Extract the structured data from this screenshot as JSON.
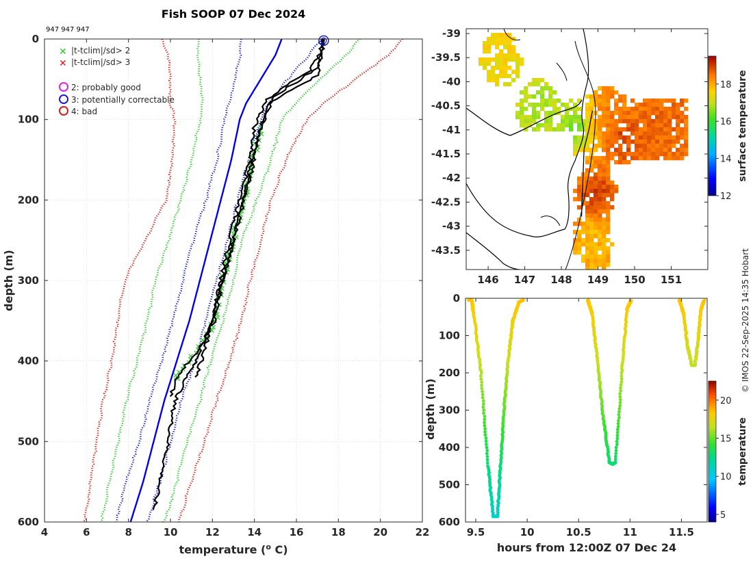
{
  "title": "Fish SOOP 07 Dec 2024",
  "ids_label": "947 947 947",
  "credit": "© IMOS 22-Sep-2025 14:35 Hobart",
  "colors": {
    "clim_red": "#e01818",
    "clim_green": "#22cc22",
    "clim_blue_dot": "#1a1ad0",
    "clim_blue_solid": "#0000ee",
    "profile": "#000000",
    "coast": "#000000"
  },
  "legend": {
    "items": [
      {
        "symbol": "x",
        "color": "#22cc22",
        "label": "|t-tclim|/sd> 2"
      },
      {
        "symbol": "x",
        "color": "#e01818",
        "label": "|t-tclim|/sd> 3"
      },
      {
        "symbol": "o",
        "color": "#dd22dd",
        "label": "2: probably good"
      },
      {
        "symbol": "o",
        "color": "#1a1ad0",
        "label": "3: potentially correctable"
      },
      {
        "symbol": "o",
        "color": "#e01818",
        "label": "4: bad"
      }
    ]
  },
  "chart_data": [
    {
      "type": "line",
      "name": "profile",
      "title": "Fish SOOP 07 Dec 2024",
      "xlabel": "temperature (",
      "xlabel_sup": "o",
      "xlabel_end": " C)",
      "ylabel": "depth (m)",
      "xlim": [
        4,
        22
      ],
      "ylim": [
        600,
        0
      ],
      "xticks": [
        4,
        6,
        8,
        10,
        12,
        14,
        16,
        18,
        20,
        22
      ],
      "yticks": [
        0,
        100,
        200,
        300,
        400,
        500,
        600
      ],
      "grid": true,
      "climatology": [
        {
          "name": "clim-minus-3sd",
          "style": "dotted",
          "color": "#e01818",
          "depth": [
            0,
            20,
            50,
            80,
            100,
            150,
            200,
            250,
            300,
            350,
            400,
            450,
            500,
            550,
            600
          ],
          "temp": [
            9.6,
            9.9,
            10.0,
            10.0,
            10.2,
            10.1,
            9.8,
            8.8,
            7.8,
            7.5,
            7.2,
            6.8,
            6.5,
            6.2,
            5.9
          ]
        },
        {
          "name": "clim-minus-2sd",
          "style": "dotted",
          "color": "#22cc22",
          "depth": [
            0,
            20,
            50,
            80,
            100,
            150,
            200,
            250,
            300,
            350,
            400,
            450,
            500,
            550,
            600
          ],
          "temp": [
            11.4,
            11.3,
            11.4,
            11.5,
            11.4,
            11.0,
            10.5,
            9.9,
            9.3,
            8.9,
            8.4,
            7.9,
            7.5,
            7.1,
            6.7
          ]
        },
        {
          "name": "clim-minus-1sd",
          "style": "dotted",
          "color": "#1a1ad0",
          "depth": [
            0,
            20,
            50,
            80,
            100,
            150,
            200,
            250,
            300,
            350,
            400,
            450,
            500,
            550,
            600
          ],
          "temp": [
            13.4,
            13.3,
            13.1,
            12.8,
            12.6,
            12.2,
            11.7,
            11.1,
            10.6,
            10.1,
            9.6,
            9.0,
            8.5,
            7.9,
            7.4
          ]
        },
        {
          "name": "clim-mean",
          "style": "solid",
          "color": "#0000ee",
          "depth": [
            0,
            20,
            50,
            80,
            100,
            150,
            200,
            250,
            300,
            350,
            400,
            450,
            500,
            550,
            600
          ],
          "temp": [
            15.3,
            15.0,
            14.3,
            13.6,
            13.3,
            12.9,
            12.4,
            11.9,
            11.4,
            10.9,
            10.3,
            9.7,
            9.2,
            8.7,
            8.1
          ]
        },
        {
          "name": "clim-plus-1sd",
          "style": "dotted",
          "color": "#1a1ad0",
          "depth": [
            0,
            20,
            50,
            80,
            100,
            150,
            200,
            250,
            300,
            350,
            400,
            450,
            500,
            550,
            600
          ],
          "temp": [
            17.2,
            16.6,
            15.6,
            14.7,
            14.3,
            13.7,
            13.2,
            12.7,
            12.2,
            11.7,
            11.2,
            10.5,
            10.0,
            9.5,
            8.9
          ]
        },
        {
          "name": "clim-plus-2sd",
          "style": "dotted",
          "color": "#22cc22",
          "depth": [
            0,
            20,
            50,
            80,
            100,
            150,
            200,
            250,
            300,
            350,
            400,
            450,
            500,
            550,
            600
          ],
          "temp": [
            19.0,
            18.4,
            17.1,
            16.0,
            15.3,
            14.8,
            14.1,
            13.4,
            13.0,
            12.5,
            11.9,
            11.4,
            10.8,
            10.3,
            9.7
          ]
        },
        {
          "name": "clim-plus-3sd",
          "style": "dotted",
          "color": "#e01818",
          "depth": [
            0,
            20,
            50,
            80,
            100,
            150,
            200,
            250,
            300,
            350,
            400,
            450,
            500,
            550,
            600
          ],
          "temp": [
            21.0,
            20.4,
            18.8,
            17.3,
            16.5,
            15.5,
            14.8,
            14.3,
            13.8,
            13.4,
            12.8,
            12.2,
            11.6,
            11.0,
            10.4
          ]
        }
      ],
      "profiles": [
        {
          "name": "profile-1",
          "depth": [
            0,
            20,
            35,
            50,
            70,
            100,
            130,
            160,
            200,
            250,
            300,
            350,
            380,
            400,
            420,
            445
          ],
          "temp": [
            17.3,
            17.2,
            17.0,
            16.2,
            15.0,
            14.4,
            14.1,
            13.8,
            13.5,
            13.0,
            12.5,
            12.1,
            11.5,
            10.9,
            10.3,
            10.0
          ]
        },
        {
          "name": "profile-2",
          "depth": [
            0,
            20,
            40,
            55,
            75,
            110,
            150,
            200,
            250,
            300,
            350,
            400,
            430,
            450,
            500,
            550,
            585
          ],
          "temp": [
            17.3,
            17.1,
            16.6,
            15.6,
            14.6,
            14.0,
            13.8,
            13.3,
            12.8,
            12.4,
            12.0,
            11.2,
            10.6,
            10.2,
            9.9,
            9.5,
            9.2
          ]
        },
        {
          "name": "profile-3",
          "depth": [
            0,
            20,
            45,
            60,
            80,
            120,
            160,
            210,
            260,
            310,
            350,
            390,
            420
          ],
          "temp": [
            17.3,
            17.2,
            17.0,
            16.0,
            14.7,
            14.2,
            13.9,
            13.4,
            12.9,
            12.4,
            12.0,
            11.6,
            11.2
          ]
        }
      ],
      "flagged_2sd_points": {
        "depth_range": [
          110,
          425
        ],
        "marker": "x",
        "color": "#22cc22"
      },
      "surface_flag_marker": {
        "depth": 2,
        "temp": 17.3,
        "label": "3: potentially correctable"
      }
    },
    {
      "type": "heatmap",
      "name": "sst-map",
      "colorbar_label": "surface temperature",
      "clim": [
        12,
        19.5
      ],
      "colorbar_ticks": [
        12,
        14,
        16,
        18
      ],
      "xlim": [
        145.4,
        152.0
      ],
      "ylim": [
        -43.9,
        -38.9
      ],
      "xticks": [
        146,
        147,
        148,
        149,
        150,
        151
      ],
      "yticks": [
        -39,
        -39.5,
        -40,
        -40.5,
        -41,
        -41.5,
        -42,
        -42.5,
        -43,
        -43.5
      ],
      "ytick_labels": [
        "-39",
        "-39.5",
        "-40",
        "-40.5",
        "-41",
        "-41.5",
        "-42",
        "-42.5",
        "-43",
        "-43.5"
      ],
      "track": {
        "lon": [
          148.85,
          148.75,
          148.62,
          148.55
        ],
        "lat": [
          -40.6,
          -41.0,
          -41.4,
          -42.8
        ]
      },
      "warm_blobs": [
        {
          "lon": 149.6,
          "lat": -41.1,
          "temp": 18.9
        },
        {
          "lon": 150.7,
          "lat": -40.8,
          "temp": 18.6
        },
        {
          "lon": 149.2,
          "lat": -40.6,
          "temp": 18.4
        },
        {
          "lon": 148.8,
          "lat": -43.2,
          "temp": 17.8
        },
        {
          "lon": 148.9,
          "lat": -42.3,
          "temp": 19.0
        },
        {
          "lon": 146.3,
          "lat": -39.5,
          "temp": 17.5
        },
        {
          "lon": 147.3,
          "lat": -40.5,
          "temp": 16.7
        },
        {
          "lon": 148.3,
          "lat": -40.9,
          "temp": 16.4
        }
      ]
    },
    {
      "type": "scatter",
      "name": "depth-time",
      "xlabel": "hours from 12:00Z 07 Dec 24",
      "ylabel": "depth (m)",
      "colorbar_label": "temperature",
      "clim": [
        4,
        22.5
      ],
      "colorbar_ticks": [
        5,
        10,
        15,
        20
      ],
      "xlim": [
        9.4,
        11.75
      ],
      "ylim": [
        600,
        0
      ],
      "xticks": [
        9.5,
        10,
        10.5,
        11,
        11.5
      ],
      "xtick_labels": [
        "9.5",
        "10",
        "10.5",
        "11",
        "11.5"
      ],
      "yticks": [
        0,
        100,
        200,
        300,
        400,
        500,
        600
      ],
      "dives": [
        {
          "name": "dive-1",
          "time": [
            9.43,
            9.46,
            9.48,
            9.55,
            9.62,
            9.67,
            9.71,
            9.74,
            9.78,
            9.82,
            9.86,
            9.92,
            9.96
          ],
          "depth": [
            5,
            5,
            40,
            200,
            450,
            585,
            585,
            450,
            280,
            150,
            60,
            10,
            5
          ],
          "temp": [
            18.5,
            18.5,
            17.8,
            15.0,
            12.0,
            10.5,
            10.5,
            12.0,
            14.0,
            15.5,
            17.5,
            18.5,
            18.5
          ]
        },
        {
          "name": "dive-2",
          "time": [
            10.59,
            10.63,
            10.68,
            10.74,
            10.8,
            10.83,
            10.86,
            10.92,
            10.97,
            11.01
          ],
          "depth": [
            5,
            40,
            160,
            320,
            440,
            445,
            440,
            200,
            30,
            5
          ],
          "temp": [
            18.5,
            17.8,
            15.5,
            13.0,
            12.0,
            12.0,
            12.0,
            15.0,
            18.0,
            18.5
          ],
          "temp_note": "colors by depth"
        },
        {
          "name": "dive-3",
          "time": [
            11.48,
            11.52,
            11.56,
            11.6,
            11.63,
            11.66,
            11.69,
            11.72
          ],
          "depth": [
            5,
            40,
            130,
            180,
            180,
            120,
            30,
            5
          ],
          "temp": [
            18.5,
            17.5,
            15.5,
            15.0,
            15.0,
            16.0,
            17.8,
            18.5
          ]
        }
      ]
    }
  ]
}
